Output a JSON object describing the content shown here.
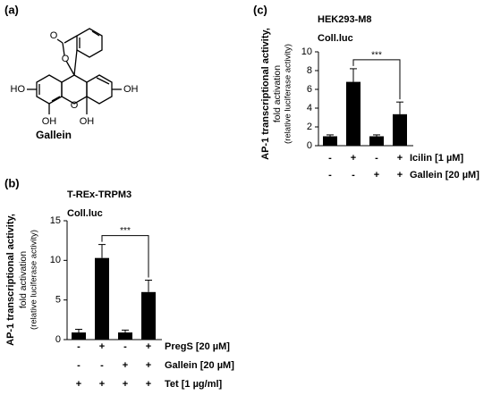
{
  "panels": {
    "a": "(a)",
    "b": "(b)",
    "c": "(c)"
  },
  "structure": {
    "name": "Gallein",
    "atoms": [
      "O",
      "O",
      "O",
      "HO",
      "OH",
      "OH",
      "OH"
    ]
  },
  "chart_data": [
    {
      "type": "bar",
      "title": "T-REx-TRPM3",
      "subtitle": "Coll.luc",
      "ylabel": [
        "AP-1 transcriptional activity,",
        "fold activation",
        "(relative luciferase activity)"
      ],
      "values": [
        0.9,
        10.3,
        0.9,
        6.0
      ],
      "errors": [
        0.4,
        1.7,
        0.3,
        1.5
      ],
      "color": "#000000",
      "ylim": [
        0,
        15
      ],
      "yticks": [
        0,
        5,
        10,
        15
      ],
      "significance": "***",
      "rows": [
        {
          "label": "PregS [20 µM]",
          "signs": [
            "-",
            "+",
            "-",
            "+"
          ]
        },
        {
          "label": "Gallein [20 µM]",
          "signs": [
            "-",
            "-",
            "+",
            "+"
          ]
        },
        {
          "label": "Tet [1 µg/ml]",
          "signs": [
            "+",
            "+",
            "+",
            "+"
          ]
        }
      ]
    },
    {
      "type": "bar",
      "title": "HEK293-M8",
      "subtitle": "Coll.luc",
      "ylabel": [
        "AP-1 transcriptional activity,",
        "fold activation",
        "(relative luciferase activity)"
      ],
      "values": [
        1.0,
        6.8,
        1.0,
        3.35
      ],
      "errors": [
        0.15,
        1.4,
        0.15,
        1.3
      ],
      "color": "#000000",
      "ylim": [
        0,
        10
      ],
      "yticks": [
        0,
        2,
        4,
        6,
        8,
        10
      ],
      "significance": "***",
      "rows": [
        {
          "label": "Icilin [1 µM]",
          "signs": [
            "-",
            "+",
            "-",
            "+"
          ]
        },
        {
          "label": "Gallein [20 µM]",
          "signs": [
            "-",
            "-",
            "+",
            "+"
          ]
        }
      ]
    }
  ]
}
